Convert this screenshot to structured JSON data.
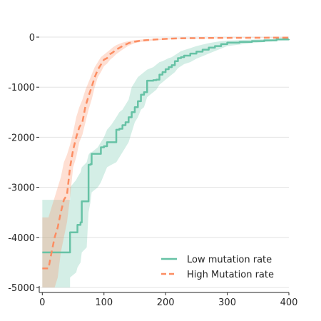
{
  "chart_data": {
    "type": "line",
    "title": "",
    "xlabel": "",
    "ylabel": "",
    "xlim": [
      -5,
      400
    ],
    "ylim": [
      -5100,
      100
    ],
    "xticks": [
      0,
      100,
      200,
      300,
      400
    ],
    "yticks": [
      0,
      -1000,
      -2000,
      -3000,
      -4000,
      -5000
    ],
    "xtick_labels": [
      "0",
      "100",
      "200",
      "300",
      "400"
    ],
    "ytick_labels": [
      "0",
      "-1000",
      "-2000",
      "-3000",
      "-4000",
      "-5000"
    ],
    "grid": "horizontal",
    "legend": {
      "placement": "bottom-right",
      "entries": [
        "Low mutation rate",
        "High Mutation rate"
      ]
    },
    "series": [
      {
        "name": "Low mutation rate",
        "color": "#66c2a5",
        "line_style": "solid",
        "x": [
          0,
          45,
          45,
          55,
          57,
          62,
          64,
          72,
          75,
          78,
          80,
          90,
          95,
          100,
          105,
          112,
          120,
          125,
          130,
          135,
          140,
          145,
          150,
          155,
          160,
          165,
          170,
          180,
          185,
          190,
          195,
          200,
          205,
          210,
          215,
          220,
          225,
          230,
          240,
          250,
          260,
          270,
          280,
          290,
          300,
          320,
          340,
          360,
          380,
          400
        ],
        "y": [
          -4300,
          -4300,
          -3900,
          -3900,
          -3750,
          -3700,
          -3280,
          -3280,
          -2550,
          -2540,
          -2330,
          -2330,
          -2200,
          -2180,
          -2100,
          -2100,
          -1850,
          -1830,
          -1760,
          -1700,
          -1600,
          -1500,
          -1400,
          -1280,
          -1150,
          -1100,
          -870,
          -860,
          -850,
          -750,
          -700,
          -640,
          -600,
          -560,
          -480,
          -420,
          -400,
          -370,
          -330,
          -290,
          -250,
          -210,
          -180,
          -140,
          -110,
          -95,
          -80,
          -65,
          -45,
          -40
        ],
        "band_upper": [
          -3250,
          -3250,
          -3000,
          -2850,
          -2800,
          -2700,
          -2600,
          -2500,
          -2350,
          -2300,
          -2300,
          -2200,
          -2100,
          -2000,
          -1850,
          -1750,
          -1600,
          -1500,
          -1450,
          -1350,
          -1250,
          -1000,
          -900,
          -800,
          -750,
          -700,
          -650,
          -600,
          -550,
          -500,
          -480,
          -450,
          -420,
          -400,
          -360,
          -320,
          -280,
          -260,
          -220,
          -180,
          -150,
          -120,
          -100,
          -80,
          -70,
          -60,
          -50,
          -40,
          -30,
          -25
        ],
        "band_lower": [
          -5000,
          -5000,
          -4800,
          -4700,
          -4600,
          -4500,
          -4300,
          -4200,
          -3500,
          -3300,
          -3100,
          -3000,
          -2900,
          -2750,
          -2600,
          -2550,
          -2500,
          -2400,
          -2300,
          -2200,
          -2100,
          -1900,
          -1700,
          -1600,
          -1450,
          -1400,
          -1200,
          -1100,
          -1050,
          -950,
          -900,
          -850,
          -800,
          -750,
          -700,
          -620,
          -580,
          -540,
          -500,
          -430,
          -380,
          -330,
          -280,
          -230,
          -180,
          -150,
          -120,
          -100,
          -80,
          -70
        ]
      },
      {
        "name": "High Mutation rate",
        "color": "#fc8d62",
        "line_style": "dashed",
        "x": [
          0,
          10,
          15,
          20,
          25,
          30,
          35,
          40,
          45,
          50,
          55,
          60,
          65,
          70,
          75,
          80,
          85,
          90,
          95,
          100,
          105,
          110,
          115,
          120,
          130,
          140,
          150,
          160,
          180,
          200,
          220,
          250,
          300,
          350,
          400
        ],
        "y": [
          -4620,
          -4620,
          -4300,
          -4000,
          -3800,
          -3500,
          -3250,
          -3150,
          -2600,
          -2250,
          -2000,
          -1800,
          -1700,
          -1380,
          -1180,
          -1000,
          -800,
          -650,
          -550,
          -450,
          -420,
          -340,
          -300,
          -250,
          -180,
          -120,
          -90,
          -70,
          -50,
          -35,
          -25,
          -20,
          -15,
          -12,
          -10
        ],
        "band_upper": [
          -3600,
          -3600,
          -3400,
          -3200,
          -3000,
          -2800,
          -2500,
          -2350,
          -2150,
          -1900,
          -1600,
          -1400,
          -1250,
          -1050,
          -900,
          -750,
          -600,
          -500,
          -400,
          -350,
          -300,
          -250,
          -200,
          -160,
          -110,
          -80,
          -60,
          -50,
          -35,
          -25,
          -18,
          -14,
          -10,
          -8,
          -6
        ],
        "band_lower": [
          -5000,
          -5000,
          -5000,
          -5000,
          -4800,
          -4300,
          -4000,
          -3700,
          -3200,
          -2600,
          -2400,
          -2100,
          -1950,
          -1700,
          -1450,
          -1250,
          -1000,
          -800,
          -700,
          -580,
          -530,
          -450,
          -400,
          -340,
          -250,
          -170,
          -120,
          -95,
          -70,
          -50,
          -35,
          -28,
          -20,
          -16,
          -14
        ]
      }
    ]
  }
}
